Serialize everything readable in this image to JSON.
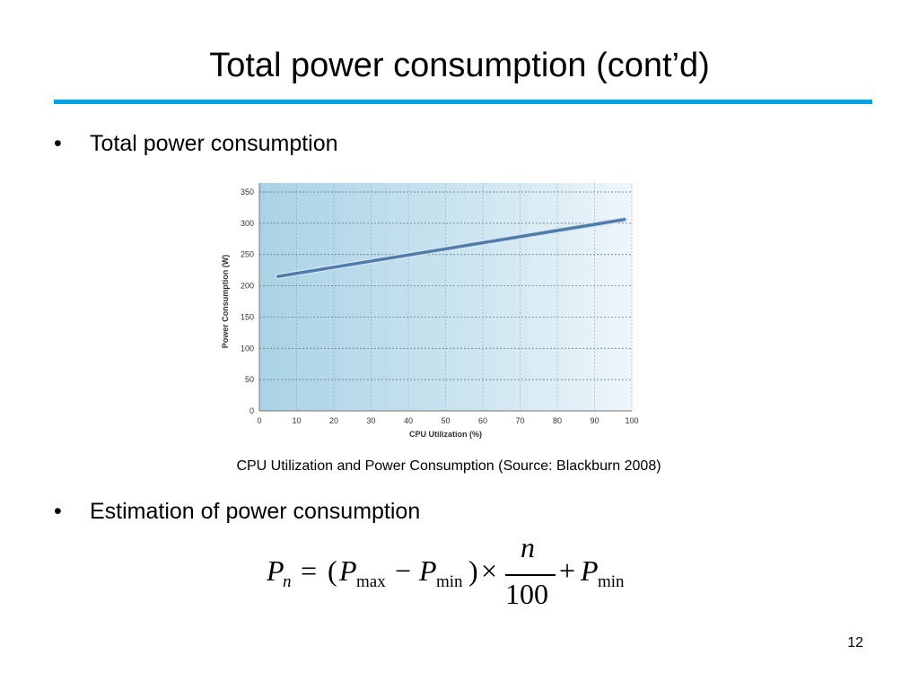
{
  "slide": {
    "title": "Total power consumption (cont’d)",
    "bullet_1": "Total power consumption",
    "bullet_2": "Estimation of power consumption",
    "bullet_symbol": "•",
    "caption": "CPU Utilization and Power Consumption (Source: Blackburn 2008)",
    "page_number": "12",
    "accent_color": "#00a3e8"
  },
  "formula": {
    "P": "P",
    "n": "n",
    "equals": "=",
    "open_paren": "(",
    "max": "max",
    "minus": "−",
    "min": "min",
    "close_paren": ")",
    "times": "×",
    "numerator": "n",
    "denominator": "100",
    "plus": "+"
  },
  "chart_data": {
    "type": "line",
    "xlabel": "CPU Utilization (%)",
    "ylabel": "Power Consumption (W)",
    "xlim": [
      0,
      100
    ],
    "ylim": [
      0,
      350
    ],
    "xticks": [
      0,
      10,
      20,
      30,
      40,
      50,
      60,
      70,
      80,
      90,
      100
    ],
    "yticks": [
      0,
      50,
      100,
      150,
      200,
      250,
      300,
      350
    ],
    "grid": true,
    "series": [
      {
        "x": [
          5,
          98
        ],
        "y": [
          215,
          306
        ]
      }
    ],
    "line_color": "#4f7cab",
    "background_color": "#bcdcec"
  }
}
